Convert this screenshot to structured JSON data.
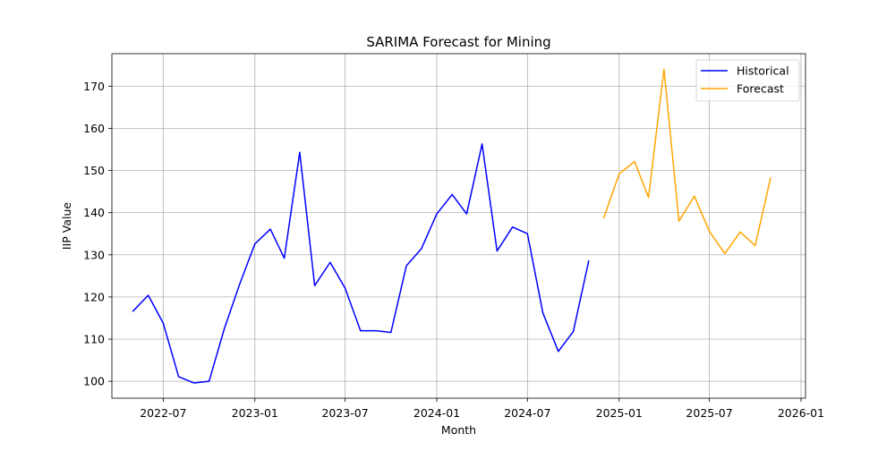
{
  "chart_data": {
    "type": "line",
    "title": "SARIMA Forecast for Mining",
    "xlabel": "Month",
    "ylabel": "IIP Value",
    "xlim": [
      "2022-03-20",
      "2026-01-10"
    ],
    "ylim": [
      96,
      177.7
    ],
    "grid": true,
    "legend_position": "top-right",
    "x_ticks": [
      "2022-07",
      "2023-01",
      "2023-07",
      "2024-01",
      "2024-07",
      "2025-01",
      "2025-07",
      "2026-01"
    ],
    "y_ticks": [
      100,
      110,
      120,
      130,
      140,
      150,
      160,
      170
    ],
    "series": [
      {
        "name": "Historical",
        "color": "#0000ff",
        "x": [
          "2022-05-01",
          "2022-06-01",
          "2022-07-01",
          "2022-08-01",
          "2022-09-01",
          "2022-10-01",
          "2022-11-01",
          "2022-12-01",
          "2023-01-01",
          "2023-02-01",
          "2023-03-01",
          "2023-04-01",
          "2023-05-01",
          "2023-06-01",
          "2023-07-01",
          "2023-08-01",
          "2023-09-01",
          "2023-10-01",
          "2023-11-01",
          "2023-12-01",
          "2024-01-01",
          "2024-02-01",
          "2024-03-01",
          "2024-04-01",
          "2024-05-01",
          "2024-06-01",
          "2024-07-01",
          "2024-08-01",
          "2024-09-01",
          "2024-10-01",
          "2024-11-01"
        ],
        "values": [
          116.6,
          120.4,
          113.8,
          101.1,
          99.6,
          100.0,
          112.6,
          122.9,
          132.6,
          136.1,
          129.2,
          154.3,
          122.7,
          128.2,
          122.1,
          112.0,
          112.0,
          111.6,
          127.4,
          131.4,
          139.7,
          144.3,
          139.7,
          156.3,
          130.9,
          136.6,
          135.0,
          116.2,
          107.1,
          111.8,
          128.6
        ]
      },
      {
        "name": "Forecast",
        "color": "#ffa500",
        "x": [
          "2024-12-01",
          "2025-01-01",
          "2025-02-01",
          "2025-03-01",
          "2025-04-01",
          "2025-05-01",
          "2025-06-01",
          "2025-07-01",
          "2025-08-01",
          "2025-09-01",
          "2025-10-01",
          "2025-11-01"
        ],
        "values": [
          138.7,
          149.2,
          152.1,
          143.6,
          174.0,
          138.0,
          143.9,
          135.6,
          130.3,
          135.4,
          132.2,
          148.3
        ]
      }
    ]
  }
}
